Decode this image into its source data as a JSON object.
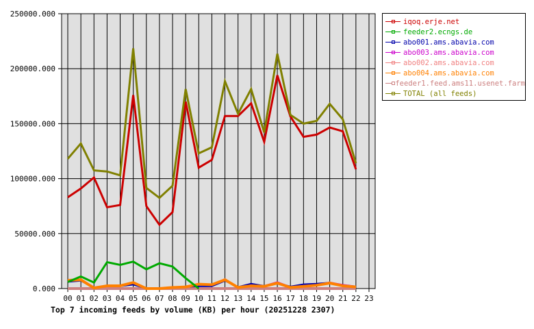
{
  "chart_data": {
    "type": "line",
    "title": "Top 7 incoming feeds by volume (KB) per hour (20251228 2307)",
    "xlabel": "",
    "ylabel": "",
    "ylim": [
      0,
      250000
    ],
    "grid": true,
    "legend_position": "right",
    "x": [
      "00",
      "01",
      "02",
      "03",
      "04",
      "05",
      "06",
      "07",
      "08",
      "09",
      "10",
      "11",
      "12",
      "13",
      "14",
      "15",
      "16",
      "17",
      "18",
      "19",
      "20",
      "21",
      "22",
      "23"
    ],
    "y_ticks": [
      "0.000",
      "50000.000",
      "100000.000",
      "150000.000",
      "200000.000",
      "250000.000"
    ],
    "y_tick_values": [
      0,
      50000,
      100000,
      150000,
      200000,
      250000
    ],
    "series": [
      {
        "name": "feeder1.feed.ams11.usenet.farm",
        "color": "#cc8080",
        "width": 4,
        "values": [
          0,
          0,
          0,
          0,
          0,
          0,
          0,
          0,
          0,
          0,
          0,
          0,
          0,
          0,
          0,
          0,
          0,
          0,
          0,
          0,
          0,
          0,
          0
        ]
      },
      {
        "name": "abo002.ams.abavia.com",
        "color": "#f08080",
        "width": 3,
        "values": [
          7500,
          8000,
          1000,
          2500,
          2500,
          5500,
          0,
          0,
          1000,
          1500,
          4000,
          3500,
          8500,
          1000,
          3000,
          2000,
          5500,
          1000,
          2000,
          3000,
          5500,
          3000,
          1500
        ]
      },
      {
        "name": "abo003.ams.abavia.com",
        "color": "#cc00cc",
        "width": 2,
        "values": [
          7000,
          7500,
          500,
          2500,
          3000,
          4500,
          0,
          0,
          1000,
          1500,
          3500,
          3000,
          8000,
          1000,
          3500,
          2500,
          6000,
          1500,
          3000,
          4000,
          5500,
          3500,
          2000
        ]
      },
      {
        "name": "abo001.ams.abavia.com",
        "color": "#0000aa",
        "width": 2,
        "values": [
          6000,
          7000,
          500,
          2000,
          2000,
          3500,
          0,
          0,
          1000,
          1500,
          2000,
          2000,
          7000,
          1500,
          4500,
          2500,
          5000,
          2000,
          4000,
          4500,
          5500,
          3000,
          2000
        ]
      },
      {
        "name": "abo004.ams.abavia.com",
        "color": "#ff8000",
        "width": 4,
        "values": [
          7500,
          8000,
          500,
          2500,
          2500,
          5500,
          0,
          0,
          1000,
          1500,
          4000,
          3500,
          8000,
          1000,
          2500,
          2000,
          5000,
          1000,
          2000,
          3000,
          5000,
          2500,
          1500
        ]
      },
      {
        "name": "feeder2.ecngs.de",
        "color": "#00aa00",
        "width": 3,
        "values": [
          6000,
          11000,
          5500,
          24000,
          21500,
          24500,
          17500,
          23000,
          20000,
          9500,
          0,
          null,
          null,
          null,
          null,
          null,
          null,
          null,
          null,
          null,
          null,
          null,
          null
        ]
      },
      {
        "name": "iqoq.erje.net",
        "color": "#cc0000",
        "width": 3,
        "values": [
          83000,
          91000,
          101000,
          74000,
          76000,
          176000,
          75000,
          58000,
          69500,
          170000,
          110000,
          117000,
          157000,
          157000,
          168500,
          133500,
          194000,
          156500,
          138000,
          140000,
          146500,
          143000,
          108500
        ]
      },
      {
        "name": "TOTAL (all feeds)",
        "color": "#808000",
        "width": 3,
        "values": [
          118000,
          132000,
          107500,
          106500,
          103000,
          218500,
          91500,
          82500,
          93500,
          181500,
          123000,
          128500,
          188500,
          159000,
          181500,
          142000,
          213500,
          158000,
          150000,
          152500,
          168000,
          154000,
          114000
        ]
      }
    ]
  },
  "legend": [
    {
      "label": "iqoq.erje.net",
      "color": "#cc0000"
    },
    {
      "label": "feeder2.ecngs.de",
      "color": "#00aa00"
    },
    {
      "label": "abo001.ams.abavia.com",
      "color": "#0000aa"
    },
    {
      "label": "abo003.ams.abavia.com",
      "color": "#cc00cc"
    },
    {
      "label": "abo002.ams.abavia.com",
      "color": "#f08080"
    },
    {
      "label": "abo004.ams.abavia.com",
      "color": "#ff8000"
    },
    {
      "label": "feeder1.feed.ams11.usenet.farm",
      "color": "#cc8080"
    },
    {
      "label": "TOTAL (all feeds)",
      "color": "#808000"
    }
  ],
  "colors": {
    "plot_background": "#e0e0e0",
    "grid": "#000000",
    "page_background": "#ffffff"
  }
}
